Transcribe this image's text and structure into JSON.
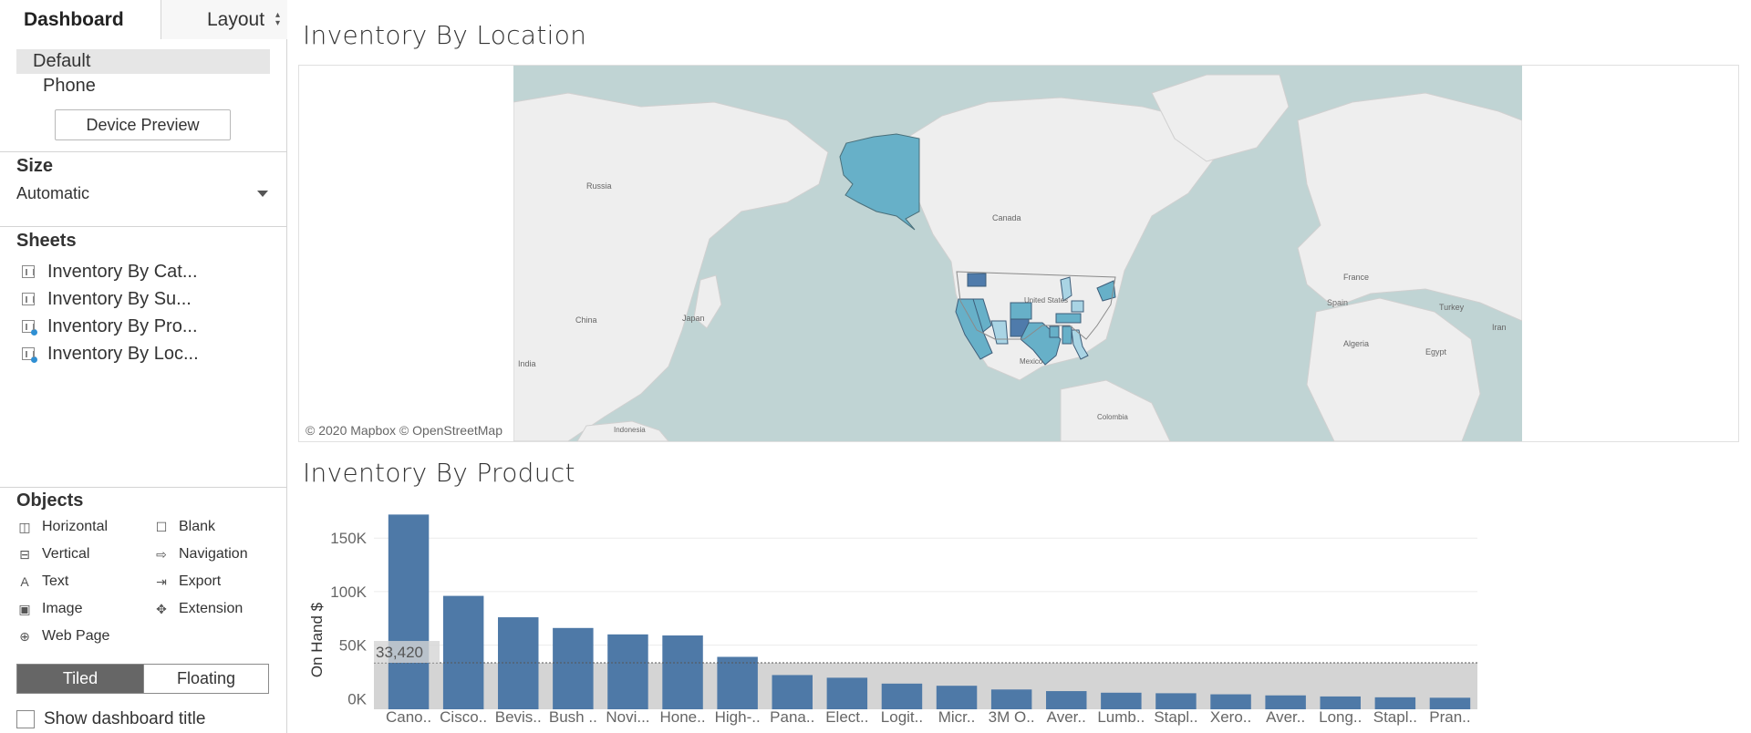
{
  "sidebar": {
    "tabs": {
      "dashboard": "Dashboard",
      "layout": "Layout"
    },
    "devices": {
      "default": "Default",
      "phone": "Phone"
    },
    "device_preview_button": "Device Preview",
    "size": {
      "title": "Size",
      "value": "Automatic"
    },
    "sheets": {
      "title": "Sheets",
      "items": [
        {
          "label": "Inventory By Cat...",
          "icon": "bar-chart-sheet-icon",
          "in_use": false
        },
        {
          "label": "Inventory By Su...",
          "icon": "bar-chart-sheet-icon",
          "in_use": false
        },
        {
          "label": "Inventory By Pro...",
          "icon": "bar-chart-sheet-icon",
          "in_use": true
        },
        {
          "label": "Inventory By Loc...",
          "icon": "bar-chart-sheet-icon",
          "in_use": true
        }
      ]
    },
    "objects": {
      "title": "Objects",
      "items": [
        {
          "label": "Horizontal",
          "icon": "horizontal-container-icon"
        },
        {
          "label": "Blank",
          "icon": "blank-icon"
        },
        {
          "label": "Vertical",
          "icon": "vertical-container-icon"
        },
        {
          "label": "Navigation",
          "icon": "navigation-icon"
        },
        {
          "label": "Text",
          "icon": "text-icon"
        },
        {
          "label": "Export",
          "icon": "export-icon"
        },
        {
          "label": "Image",
          "icon": "image-icon"
        },
        {
          "label": "Extension",
          "icon": "extension-icon"
        },
        {
          "label": "Web Page",
          "icon": "globe-icon"
        }
      ]
    },
    "mode": {
      "tiled": "Tiled",
      "floating": "Floating",
      "selected": "Tiled"
    },
    "show_dashboard_title": {
      "label": "Show dashboard title",
      "checked": false
    }
  },
  "map": {
    "title": "Inventory By Location",
    "attribution": "© 2020 Mapbox © OpenStreetMap",
    "place_labels": [
      "Russia",
      "Canada",
      "United States",
      "China",
      "Japan",
      "India",
      "Mexico",
      "France",
      "Spain",
      "Turkey",
      "Iran",
      "Algeria",
      "Egypt",
      "Colombia",
      "Indonesia"
    ],
    "colors": {
      "water": "#c0d4d4",
      "land": "#eeeeee",
      "fill_light": "#a9d4e4",
      "fill_mid": "#67b0c8",
      "fill_dark": "#4f7bab"
    }
  },
  "chart_data": {
    "type": "bar",
    "title": "Inventory By Product",
    "ylabel": "On Hand $",
    "categories": [
      "Cano..",
      "Cisco..",
      "Bevis..",
      "Bush ..",
      "Novi...",
      "Hone..",
      "High-..",
      "Pana..",
      "Elect..",
      "Logit..",
      "Micr..",
      "3M O..",
      "Aver..",
      "Lumb..",
      "Stapl..",
      "Xero..",
      "Aver..",
      "Long..",
      "Stapl..",
      "Pran.."
    ],
    "values": [
      172000,
      96000,
      76000,
      66000,
      60000,
      59000,
      39000,
      22000,
      19500,
      14000,
      12000,
      8500,
      7000,
      5500,
      5000,
      4000,
      3000,
      2000,
      1200,
      800
    ],
    "yticks": [
      0,
      50000,
      100000,
      150000
    ],
    "ytick_labels": [
      "0K",
      "50K",
      "100K",
      "150K"
    ],
    "ylim": [
      -10000,
      180000
    ],
    "reference_line": {
      "value": 33420,
      "label": "33,420"
    },
    "bar_color": "#4e79a7",
    "band_color": "#d4d4d4"
  }
}
